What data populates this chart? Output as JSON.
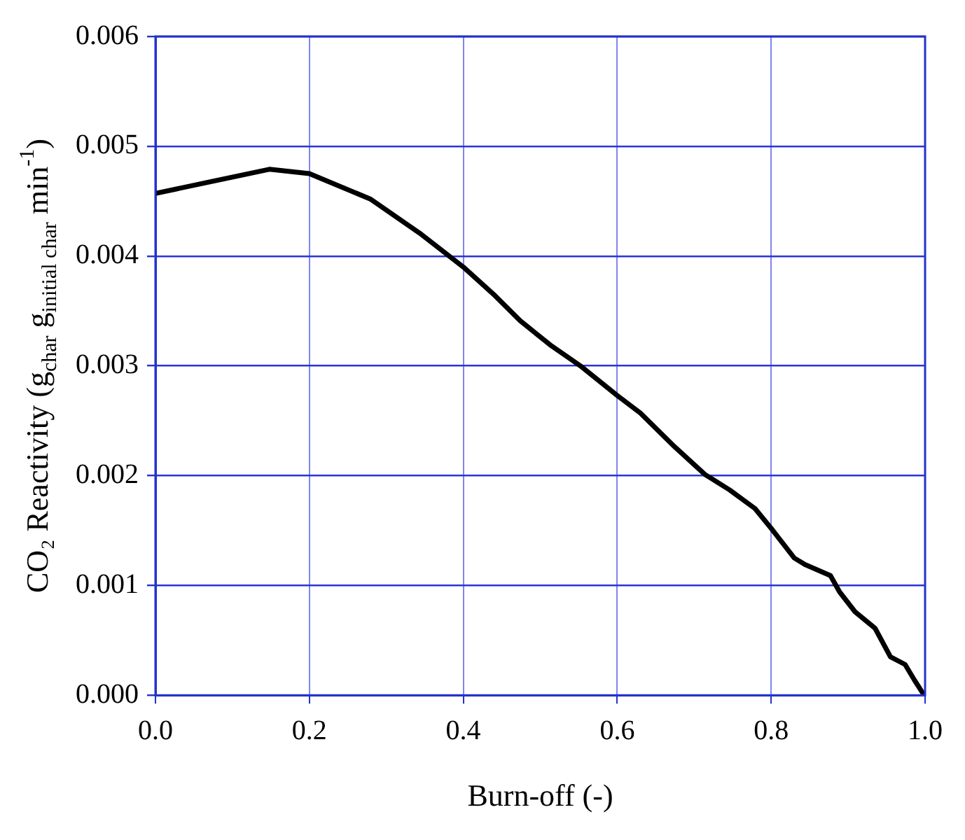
{
  "chart_data": {
    "type": "line",
    "xlabel": "Burn-off (-)",
    "ylabel": "CO₂ Reactivity (g$_{char}$ g$_{initial char}$ min$^{-1}$)",
    "x": [
      0,
      0.148,
      0.2,
      0.279,
      0.343,
      0.4,
      0.441,
      0.474,
      0.513,
      0.552,
      0.6,
      0.63,
      0.675,
      0.714,
      0.746,
      0.779,
      0.8,
      0.83,
      0.844,
      0.877,
      0.889,
      0.909,
      0.935,
      0.955,
      0.974,
      0.986,
      0.997
    ],
    "series": [
      {
        "color": "#000000",
        "values": [
          0.00457,
          0.00479,
          0.00475,
          0.00452,
          0.00421,
          0.0039,
          0.00364,
          0.00341,
          0.00319,
          0.003,
          0.00273,
          0.00257,
          0.00226,
          0.00201,
          0.00187,
          0.0017,
          0.00152,
          0.00125,
          0.00119,
          0.00109,
          0.00094,
          0.00076,
          0.00061,
          0.00035,
          0.00028,
          0.00014,
          2e-05
        ]
      }
    ],
    "xlim": [
      0,
      1
    ],
    "xticks": [
      {
        "value": 0,
        "label": "0.0"
      },
      0.2,
      0.4,
      0.6,
      0.8,
      {
        "value": 1,
        "label": "1.0"
      }
    ],
    "ylim": [
      0,
      0.006
    ],
    "yticks": [
      {
        "value": 0,
        "label": "0.000"
      },
      0.001,
      0.002,
      0.003,
      0.004,
      0.005,
      0.006
    ],
    "grid": true,
    "legend": false,
    "marker": "none",
    "line_style": "solid"
  }
}
